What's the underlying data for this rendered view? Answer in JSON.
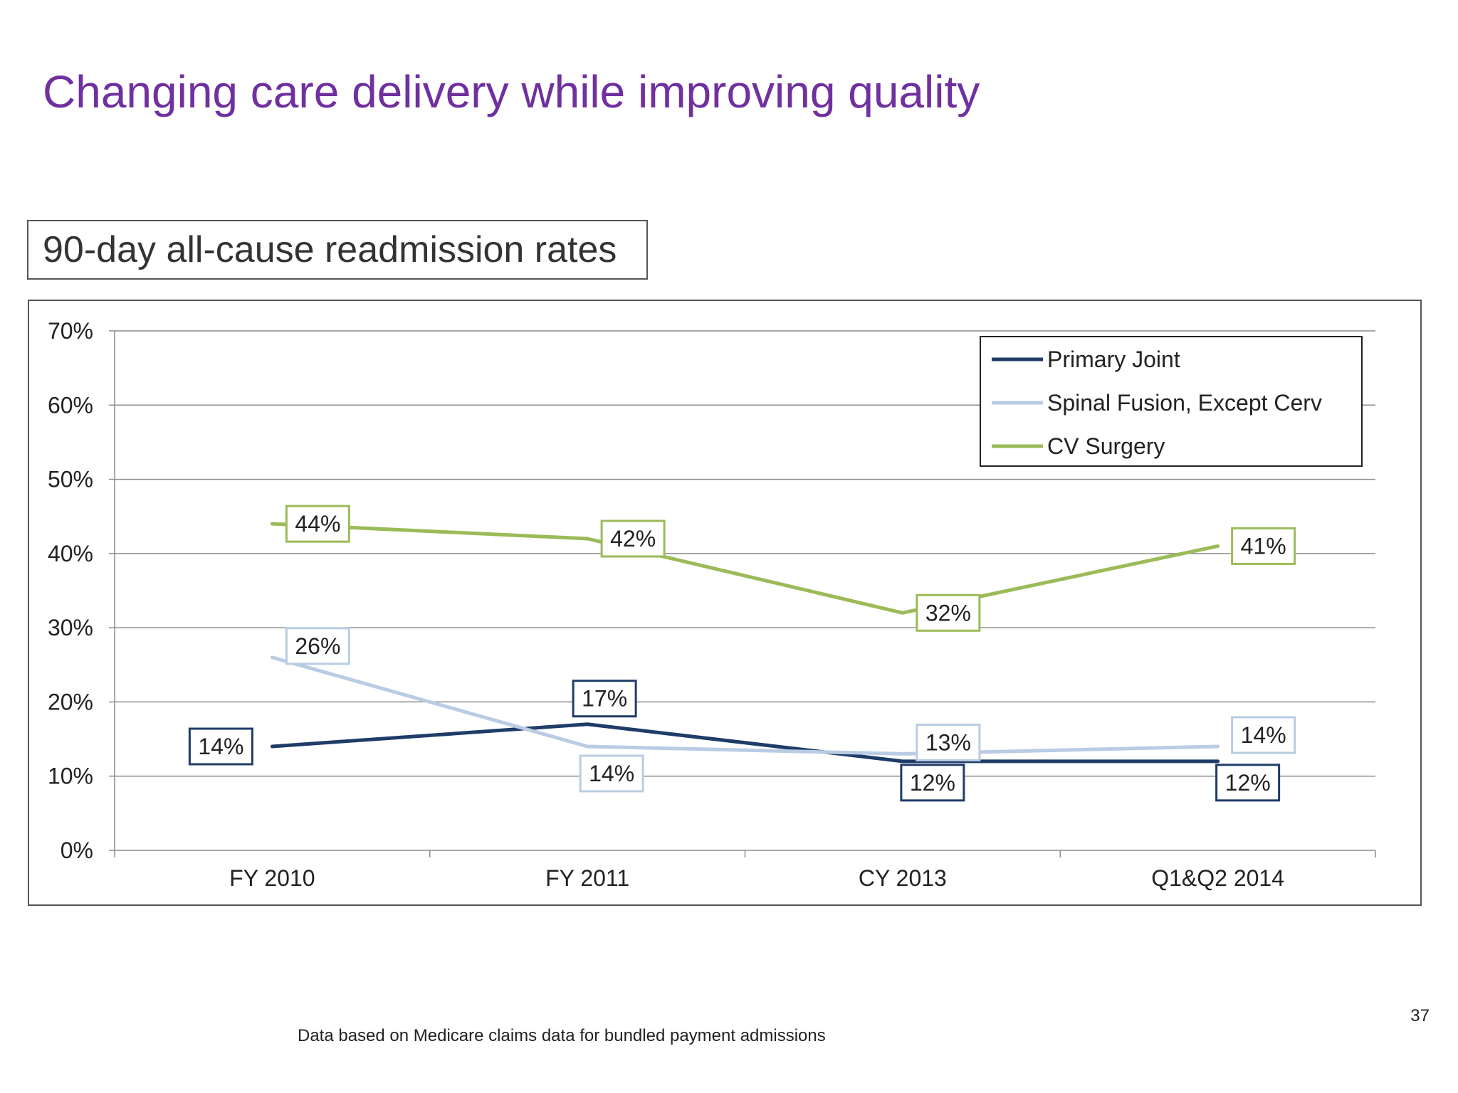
{
  "slide": {
    "title": "Changing care delivery while improving quality",
    "chart_heading": "90-day all-cause readmission rates",
    "footnote": "Data based on Medicare claims data for bundled payment admissions",
    "page_number": "37"
  },
  "chart_data": {
    "type": "line",
    "title": "90-day all-cause readmission rates",
    "xlabel": "",
    "ylabel": "",
    "categories": [
      "FY 2010",
      "FY 2011",
      "CY 2013",
      "Q1&Q2 2014"
    ],
    "ylim": [
      0,
      70
    ],
    "yticks": [
      0,
      10,
      20,
      30,
      40,
      50,
      60,
      70
    ],
    "ytick_labels": [
      "0%",
      "10%",
      "20%",
      "30%",
      "40%",
      "50%",
      "60%",
      "70%"
    ],
    "grid": true,
    "legend": "top-right",
    "series": [
      {
        "name": "Primary Joint",
        "values": [
          14,
          17,
          12,
          12
        ],
        "labels": [
          "14%",
          "17%",
          "12%",
          "12%"
        ],
        "label_position": [
          "left",
          "above",
          "below",
          "below"
        ],
        "color": "#1f3c68"
      },
      {
        "name": "Spinal Fusion, Except Cerv",
        "values": [
          26,
          14,
          13,
          14
        ],
        "labels": [
          "26%",
          "14%",
          "13%",
          "14%"
        ],
        "label_position": [
          "above-right",
          "below-right",
          "above-right",
          "above-right"
        ],
        "color": "#b9cce4"
      },
      {
        "name": "CV Surgery",
        "values": [
          44,
          42,
          32,
          41
        ],
        "labels": [
          "44%",
          "42%",
          "32%",
          "41%"
        ],
        "label_position": [
          "right",
          "right",
          "right",
          "right"
        ],
        "color": "#9bbb59"
      }
    ]
  }
}
